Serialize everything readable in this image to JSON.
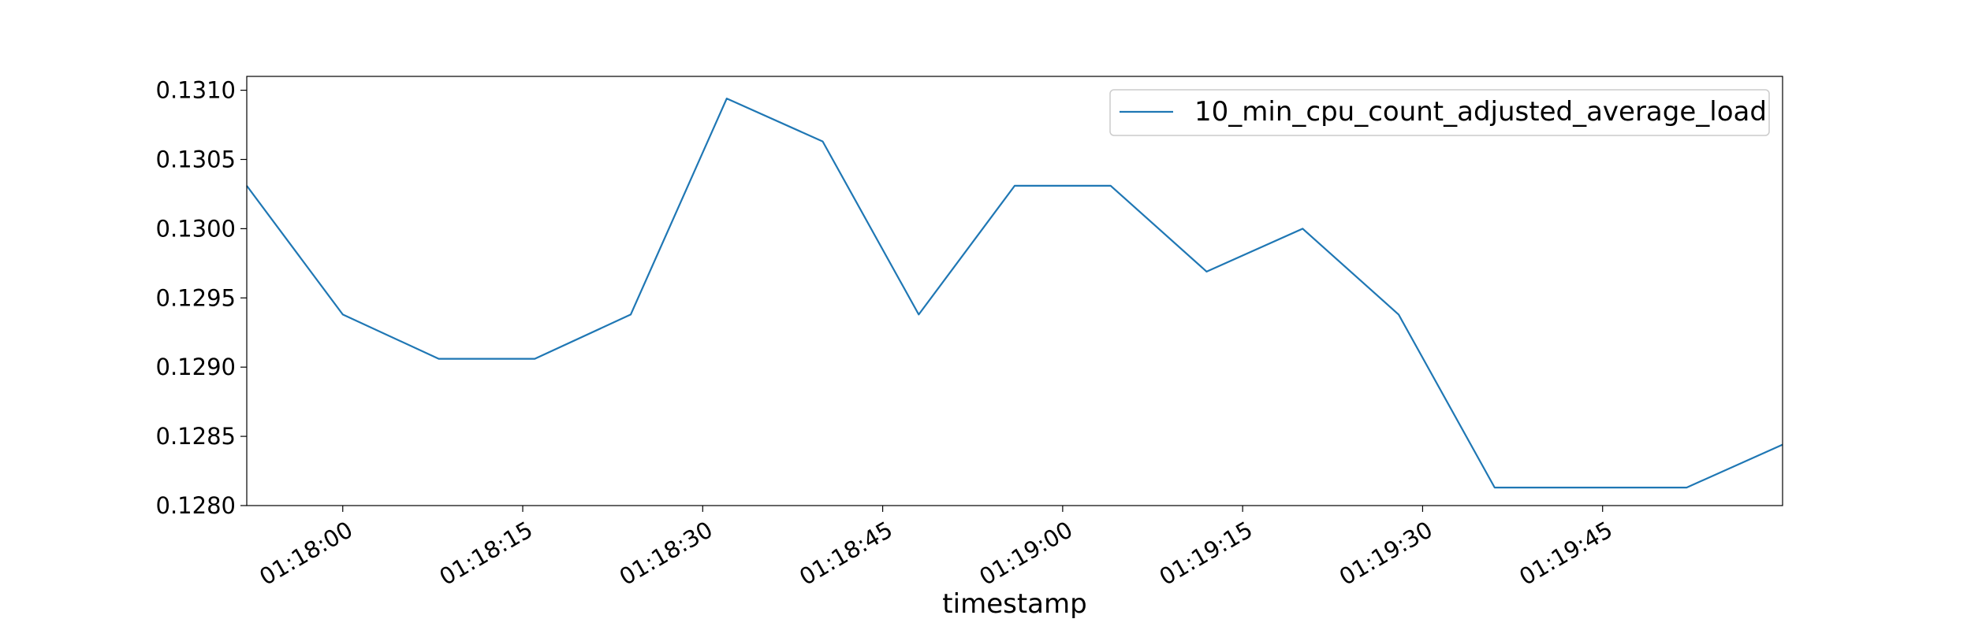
{
  "chart_data": {
    "type": "line",
    "title": "",
    "xlabel": "timestamp",
    "ylabel": "",
    "grid": false,
    "legend_position": "top-right",
    "line_color": "#1f77b4",
    "xlim": [
      "01:17:52",
      "01:20:00"
    ],
    "ylim": [
      0.128,
      0.1311
    ],
    "x_ticks": [
      "01:18:00",
      "01:18:15",
      "01:18:30",
      "01:18:45",
      "01:19:00",
      "01:19:15",
      "01:19:30",
      "01:19:45"
    ],
    "y_ticks": [
      "0.1280",
      "0.1285",
      "0.1290",
      "0.1295",
      "0.1300",
      "0.1305",
      "0.1310"
    ],
    "series": [
      {
        "name": "10_min_cpu_count_adjusted_average_load",
        "x": [
          "01:17:52",
          "01:18:00",
          "01:18:08",
          "01:18:16",
          "01:18:24",
          "01:18:32",
          "01:18:40",
          "01:18:48",
          "01:18:56",
          "01:19:04",
          "01:19:12",
          "01:19:20",
          "01:19:28",
          "01:19:36",
          "01:19:44",
          "01:19:52",
          "01:20:00"
        ],
        "values": [
          0.13031,
          0.12938,
          0.12906,
          0.12906,
          0.12938,
          0.13094,
          0.13063,
          0.12938,
          0.13031,
          0.13031,
          0.12969,
          0.13,
          0.12938,
          0.12813,
          0.12813,
          0.12813,
          0.12844
        ]
      }
    ]
  }
}
